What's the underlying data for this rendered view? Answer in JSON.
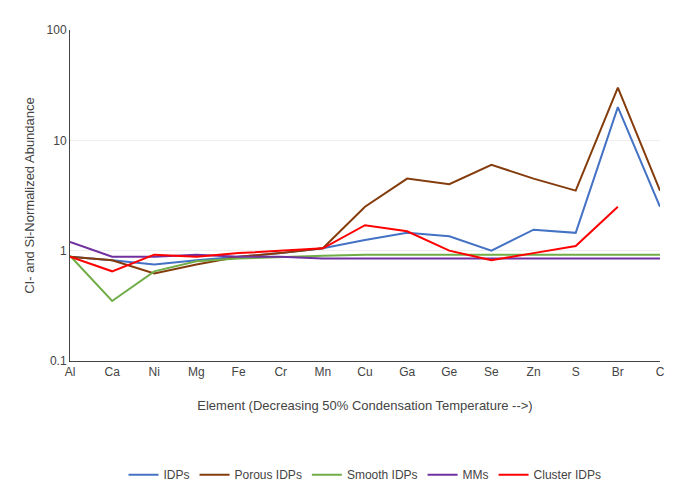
{
  "chart_data": {
    "type": "line",
    "xlabel": "Element (Decreasing 50% Condensation Temperature -->)",
    "ylabel": "CI- and Si-Normalized Abundance",
    "categories": [
      "Al",
      "Ca",
      "Ni",
      "Mg",
      "Fe",
      "Cr",
      "Mn",
      "Cu",
      "Ga",
      "Ge",
      "Se",
      "Zn",
      "S",
      "Br",
      "C"
    ],
    "series": [
      {
        "name": "IDPs",
        "color": "#4472C4",
        "values": [
          0.88,
          0.82,
          0.75,
          0.82,
          0.88,
          0.95,
          1.05,
          1.25,
          1.45,
          1.35,
          1.0,
          1.55,
          1.45,
          20.0,
          2.5
        ]
      },
      {
        "name": "Porous IDPs",
        "color": "#843C0C",
        "values": [
          0.88,
          0.82,
          0.62,
          0.75,
          0.88,
          0.95,
          1.05,
          2.5,
          4.5,
          4.0,
          6.0,
          4.5,
          3.5,
          30.0,
          3.5
        ]
      },
      {
        "name": "Smooth IDPs",
        "color": "#70AD47",
        "values": [
          0.9,
          0.35,
          0.65,
          0.8,
          0.85,
          0.88,
          0.9,
          0.92,
          0.92,
          0.92,
          0.92,
          0.92,
          0.92,
          0.92,
          0.92
        ]
      },
      {
        "name": "MMs",
        "color": "#7030A0",
        "values": [
          1.2,
          0.88,
          0.88,
          0.92,
          0.88,
          0.88,
          0.85,
          0.85,
          0.85,
          0.85,
          0.85,
          0.85,
          0.85,
          0.85,
          0.85
        ]
      },
      {
        "name": "Cluster IDPs",
        "color": "#FF0000",
        "values": [
          0.88,
          0.65,
          0.92,
          0.88,
          0.95,
          1.0,
          1.05,
          1.7,
          1.5,
          1.0,
          0.82,
          0.95,
          1.1,
          2.5,
          null
        ]
      }
    ],
    "ylim": [
      0.1,
      100
    ],
    "yticks": [
      0.1,
      1,
      10,
      100
    ],
    "log": "y",
    "grid": true,
    "legend": "bottom"
  }
}
